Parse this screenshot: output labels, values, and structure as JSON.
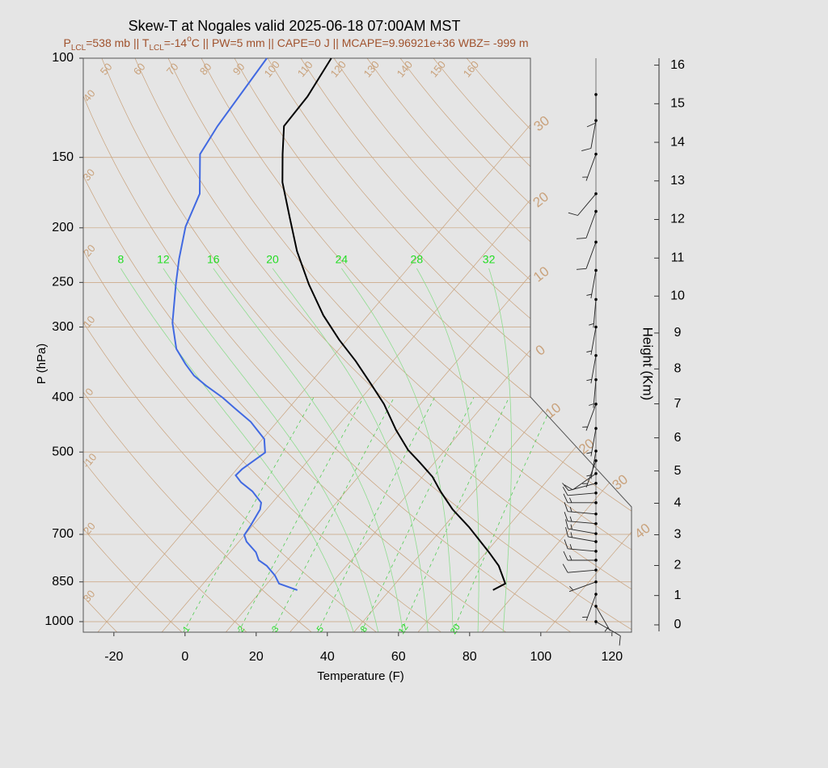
{
  "chart_data": {
    "type": "skewt",
    "title": "Skew-T at Nogales valid 2025-06-18 07:00AM MST",
    "subtitle": [
      {
        "text": "P"
      },
      {
        "text": "LCL",
        "shift": "sub"
      },
      {
        "text": "=538 mb || T"
      },
      {
        "text": "LCL",
        "shift": "sub"
      },
      {
        "text": "=-14"
      },
      {
        "text": "o",
        "shift": "super"
      },
      {
        "text": "C || PW=5 mm || CAPE=0 J || MCAPE=9.96921e+36 WBZ= -999 m"
      }
    ],
    "xlabel": "Temperature (F)",
    "ylabel": "P (hPa)",
    "y2label": "Height (Km)",
    "xlim": [
      -28.6,
      125.5
    ],
    "xticks": [
      -20,
      0,
      20,
      40,
      60,
      80,
      100,
      120
    ],
    "ylim": [
      1044,
      100
    ],
    "yticks": [
      100,
      150,
      200,
      250,
      300,
      400,
      500,
      700,
      850,
      1000
    ],
    "y2ticks": [
      0,
      1,
      2,
      3,
      4,
      5,
      6,
      7,
      8,
      9,
      10,
      11,
      12,
      13,
      14,
      15,
      16
    ],
    "isotherms": [
      {
        "value": -30,
        "label": "30"
      },
      {
        "value": -20,
        "label": "20"
      },
      {
        "value": -10,
        "label": "10"
      },
      0,
      10,
      20,
      30,
      40
    ],
    "dry_adiabats": [
      {
        "value": -30,
        "label": "30"
      },
      {
        "value": -20,
        "label": "20"
      },
      -10,
      0,
      10,
      20,
      30,
      40,
      50,
      60,
      70,
      80,
      90,
      100,
      110,
      120,
      130,
      140,
      150,
      160
    ],
    "moist_adiabats": [
      8,
      12,
      16,
      20,
      24,
      28,
      32
    ],
    "mixing_ratios": [
      1,
      2,
      3,
      5,
      8,
      12,
      20
    ],
    "series": [
      {
        "color": "#000000",
        "y": [
          879,
          856,
          796,
          753,
          679,
          632,
          586,
          553,
          522,
          496,
          457,
          411,
          380,
          345,
          316,
          286,
          252,
          220,
          192,
          166,
          148,
          132,
          117,
          100
        ],
        "x": [
          79.0,
          80.9,
          74.8,
          68.8,
          57.1,
          48.3,
          40.4,
          34.8,
          27.9,
          21.6,
          13.4,
          3.8,
          -4.3,
          -14.4,
          -24.2,
          -34.5,
          -46.0,
          -57.3,
          -67.3,
          -77.9,
          -84.6,
          -90.9,
          -91.4,
          -93.9
        ]
      },
      {
        "color": "#4169e1",
        "y": [
          879,
          856,
          828,
          796,
          778,
          753,
          721,
          702,
          675,
          632,
          615,
          587,
          566,
          550,
          536,
          501,
          474,
          442,
          418,
          400,
          381,
          366,
          349,
          328,
          295,
          251,
          227,
          199,
          174,
          148,
          132,
          100
        ],
        "x": [
          24.0,
          17.3,
          14.2,
          9.6,
          6.0,
          3.3,
          -1.9,
          -4.1,
          -4.6,
          -5.8,
          -7.1,
          -12.3,
          -17.6,
          -20.8,
          -20.5,
          -18.0,
          -21.5,
          -29.4,
          -37.2,
          -43.2,
          -50.7,
          -56.4,
          -61.6,
          -67.8,
          -75.1,
          -83.6,
          -88.6,
          -94.5,
          -98.4,
          -107.8,
          -109.6,
          -112.0
        ]
      }
    ],
    "winds": {
      "pressure": [
        1000,
        939,
        894,
        850,
        810,
        778,
        750,
        721,
        698,
        670,
        644,
        615,
        591,
        568,
        546,
        518,
        498,
        454,
        411,
        372,
        337,
        300,
        268,
        238,
        212,
        187,
        174,
        148,
        129,
        116
      ],
      "direction": [
        120,
        150,
        200,
        250,
        265,
        270,
        275,
        280,
        280,
        275,
        275,
        270,
        265,
        255,
        235,
        200,
        190,
        190,
        200,
        185,
        190,
        190,
        185,
        190,
        200,
        200,
        220,
        200,
        190,
        180
      ],
      "speed": [
        10,
        5,
        5,
        5,
        10,
        15,
        15,
        15,
        15,
        15,
        15,
        15,
        10,
        10,
        10,
        5,
        5,
        5,
        5,
        5,
        5,
        5,
        5,
        5,
        10,
        10,
        10,
        5,
        10,
        10
      ]
    }
  }
}
